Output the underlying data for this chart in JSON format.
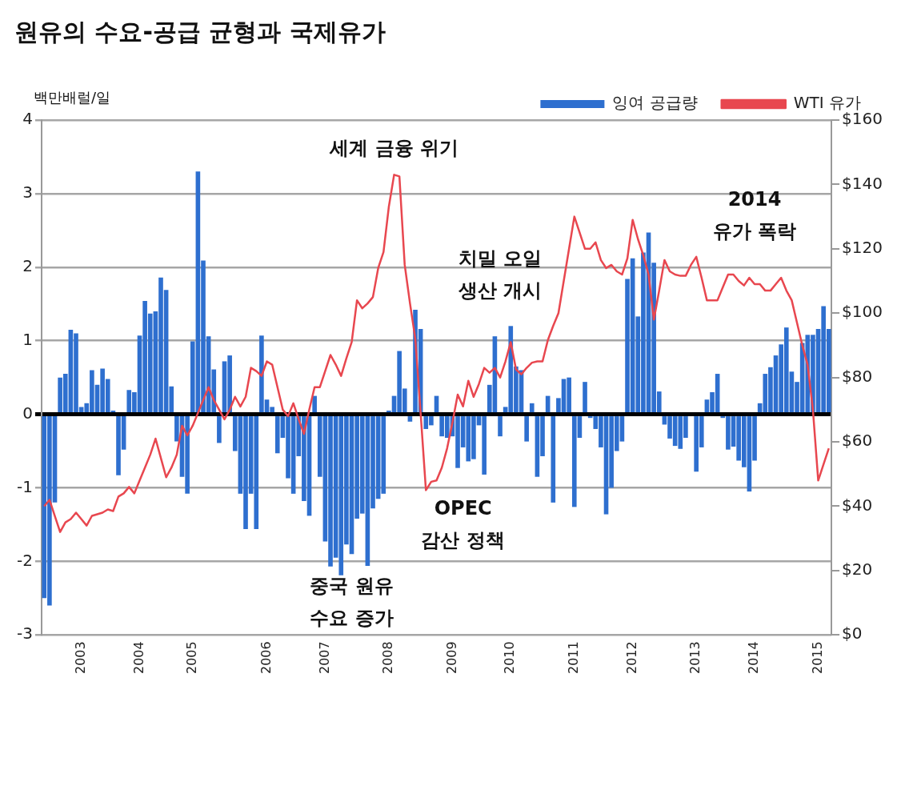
{
  "chart_data": {
    "type": "bar",
    "title": "원유의 수요-공급 균형과 국제유가",
    "ylabel": "백만배럴/일",
    "categories": [
      null,
      null,
      null,
      null,
      null,
      null,
      null,
      "2003",
      null,
      null,
      null,
      null,
      null,
      null,
      null,
      null,
      null,
      null,
      "2004",
      null,
      null,
      null,
      null,
      null,
      null,
      null,
      null,
      null,
      "2005",
      null,
      null,
      null,
      null,
      null,
      null,
      null,
      null,
      null,
      null,
      null,
      null,
      null,
      "2006",
      null,
      null,
      null,
      null,
      null,
      null,
      null,
      null,
      null,
      null,
      "2007",
      null,
      null,
      null,
      null,
      null,
      null,
      null,
      null,
      null,
      null,
      null,
      "2008",
      null,
      null,
      null,
      null,
      null,
      null,
      null,
      null,
      null,
      null,
      null,
      "2009",
      null,
      null,
      null,
      null,
      null,
      null,
      null,
      null,
      null,
      null,
      "2010",
      null,
      null,
      null,
      null,
      null,
      null,
      null,
      null,
      null,
      null,
      null,
      "2011",
      null,
      null,
      null,
      null,
      null,
      null,
      null,
      null,
      null,
      null,
      "2012",
      null,
      null,
      null,
      null,
      null,
      null,
      null,
      null,
      null,
      null,
      null,
      "2013",
      null,
      null,
      null,
      null,
      null,
      null,
      null,
      null,
      null,
      null,
      "2014",
      null,
      null,
      null,
      null,
      null,
      null,
      null,
      null,
      null,
      null,
      null,
      "2015",
      null,
      null
    ],
    "series": [
      {
        "name": "잉여 공급량",
        "color": "#2e6fcf",
        "values": [
          -2.5,
          -2.6,
          -1.2,
          0.5,
          0.55,
          1.15,
          1.1,
          0.1,
          0.15,
          0.6,
          0.4,
          0.62,
          0.48,
          0.05,
          -0.83,
          -0.48,
          0.33,
          0.3,
          1.07,
          1.54,
          1.37,
          1.4,
          1.86,
          1.69,
          0.38,
          -0.37,
          -0.85,
          -1.08,
          0.99,
          3.3,
          2.09,
          1.06,
          0.61,
          -0.39,
          0.72,
          0.8,
          -0.5,
          -1.08,
          -1.56,
          -1.08,
          -1.56,
          1.07,
          0.2,
          0.1,
          -0.53,
          -0.32,
          -0.87,
          -1.08,
          -0.57,
          -1.18,
          -1.38,
          0.25,
          -0.85,
          -1.73,
          -2.07,
          -1.95,
          -2.19,
          -1.77,
          -1.9,
          -1.42,
          -1.35,
          -2.06,
          -1.28,
          -1.15,
          -1.08,
          0.05,
          0.25,
          0.86,
          0.35,
          -0.1,
          1.42,
          1.16,
          -0.2,
          -0.15,
          0.25,
          -0.3,
          -0.32,
          -0.3,
          -0.73,
          -0.45,
          -0.64,
          -0.61,
          -0.15,
          -0.82,
          0.4,
          1.06,
          -0.3,
          0.1,
          1.2,
          0.65,
          0.6,
          -0.37,
          0.15,
          -0.85,
          -0.57,
          0.25,
          -1.2,
          0.22,
          0.48,
          0.5,
          -1.26,
          -0.32,
          0.44,
          -0.05,
          -0.2,
          -0.45,
          -1.36,
          -1.0,
          -0.5,
          -0.37,
          1.84,
          2.12,
          1.33,
          2.2,
          2.47,
          2.06,
          0.31,
          -0.14,
          -0.33,
          -0.43,
          -0.47,
          -0.32,
          null,
          -0.78,
          -0.45,
          0.2,
          0.3,
          0.55,
          -0.05,
          -0.48,
          -0.44,
          -0.63,
          -0.72,
          -1.05,
          -0.63,
          0.15,
          0.55,
          0.64,
          0.8,
          0.95,
          1.18,
          0.58,
          0.44,
          0.97,
          1.08,
          1.08,
          1.16,
          1.47,
          1.16
        ]
      },
      {
        "name": "WTI 유가",
        "type": "line",
        "axis": "y2",
        "color": "#e8474f",
        "values": [
          40,
          42,
          37,
          32,
          35,
          36,
          38,
          36,
          34,
          37,
          37.5,
          38,
          39,
          38.5,
          43,
          44,
          46,
          44,
          48,
          52,
          56,
          61,
          55,
          49,
          52,
          56,
          65,
          62,
          65,
          69,
          73,
          77,
          73,
          70,
          67,
          70,
          74,
          71,
          74,
          83,
          82,
          80.5,
          85,
          84,
          77,
          70,
          68,
          72,
          67,
          62.5,
          70,
          77,
          77,
          82,
          87,
          84,
          80.5,
          86,
          91,
          104,
          101.5,
          103,
          105,
          114,
          119,
          133,
          143,
          142.5,
          115,
          103,
          92,
          69,
          45,
          47.6,
          48,
          52,
          58,
          66,
          74.7,
          71,
          79,
          74,
          78,
          83,
          81.5,
          83,
          80,
          85,
          91,
          82.5,
          81,
          83,
          84.6,
          85,
          85,
          91.6,
          96,
          100,
          110,
          120,
          130,
          125,
          120,
          120,
          122,
          116.5,
          114,
          115,
          113,
          112,
          117,
          129,
          123,
          118,
          112,
          98,
          107,
          116.5,
          113,
          112,
          111.6,
          111.6,
          115,
          117.5,
          111,
          104,
          104,
          104,
          108,
          112,
          112,
          110,
          108.6,
          111,
          109,
          109,
          107,
          107,
          109,
          111,
          107,
          104,
          97,
          90,
          84,
          70,
          48,
          53,
          58
        ]
      }
    ],
    "ylim": [
      -3,
      4
    ],
    "yticks": [
      -3,
      -2,
      -1,
      0,
      1,
      2,
      3,
      4
    ],
    "y2lim": [
      0,
      160
    ],
    "y2ticks": [
      {
        "value": 0,
        "label": "$0"
      },
      {
        "value": 20,
        "label": "$20"
      },
      {
        "value": 40,
        "label": "$40"
      },
      {
        "value": 60,
        "label": "$60"
      },
      {
        "value": 80,
        "label": "$80"
      },
      {
        "value": 100,
        "label": "$100"
      },
      {
        "value": 120,
        "label": "$120"
      },
      {
        "value": 140,
        "label": "$140"
      },
      {
        "value": 160,
        "label": "$160"
      }
    ],
    "grid": "y",
    "legend": "top right",
    "marker": "none",
    "line_style": "solid",
    "annotations": [
      "세계 금융 위기",
      "치밀 오일\n생산 개시",
      "OPEC\n감산 정책",
      "2014\n유가 폭락",
      "중국 원유\n수요 증가"
    ]
  }
}
